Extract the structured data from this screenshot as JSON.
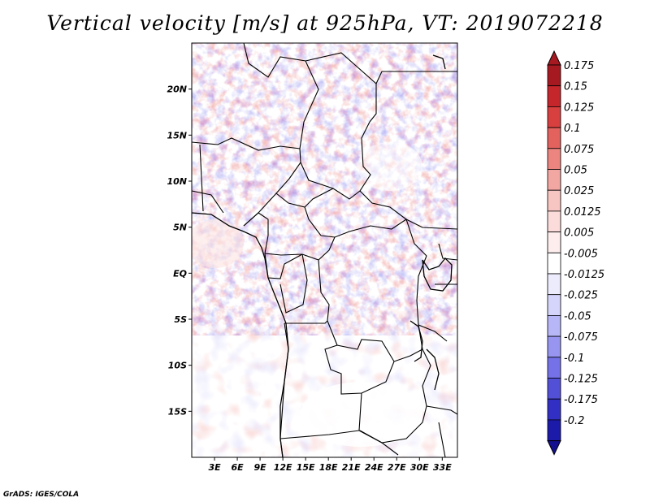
{
  "title": "Vertical velocity [m/s] at 925hPa, VT: 2019072218",
  "credit": "GrADS: IGES/COLA",
  "map": {
    "lat_range": [
      -20,
      25
    ],
    "lon_range": [
      0,
      35
    ],
    "lat_labels": [
      {
        "value": 20,
        "text": "20N"
      },
      {
        "value": 15,
        "text": "15N"
      },
      {
        "value": 10,
        "text": "10N"
      },
      {
        "value": 5,
        "text": "5N"
      },
      {
        "value": 0,
        "text": "EQ"
      },
      {
        "value": -5,
        "text": "5S"
      },
      {
        "value": -10,
        "text": "10S"
      },
      {
        "value": -15,
        "text": "15S"
      }
    ],
    "lon_labels": [
      {
        "value": 3,
        "text": "3E"
      },
      {
        "value": 6,
        "text": "6E"
      },
      {
        "value": 9,
        "text": "9E"
      },
      {
        "value": 12,
        "text": "12E"
      },
      {
        "value": 15,
        "text": "15E"
      },
      {
        "value": 18,
        "text": "18E"
      },
      {
        "value": 21,
        "text": "21E"
      },
      {
        "value": 24,
        "text": "24E"
      },
      {
        "value": 27,
        "text": "27E"
      },
      {
        "value": 30,
        "text": "30E"
      },
      {
        "value": 33,
        "text": "33E"
      }
    ]
  },
  "colorbar": {
    "levels": [
      {
        "label": "0.175",
        "color": "#a71920"
      },
      {
        "label": "0.15",
        "color": "#c4262b"
      },
      {
        "label": "0.125",
        "color": "#d8403f"
      },
      {
        "label": "0.1",
        "color": "#e3625e"
      },
      {
        "label": "0.075",
        "color": "#ec8580"
      },
      {
        "label": "0.05",
        "color": "#f3a7a2"
      },
      {
        "label": "0.025",
        "color": "#f8c6c2"
      },
      {
        "label": "0.0125",
        "color": "#fbdcda"
      },
      {
        "label": "0.005",
        "color": "#fdeeed"
      },
      {
        "label": "-0.005",
        "color": "#ffffff"
      },
      {
        "label": "-0.0125",
        "color": "#ececfd"
      },
      {
        "label": "-0.025",
        "color": "#d5d5fb"
      },
      {
        "label": "-0.05",
        "color": "#b7b6f7"
      },
      {
        "label": "-0.075",
        "color": "#9795f0"
      },
      {
        "label": "-0.1",
        "color": "#7472e6"
      },
      {
        "label": "-0.125",
        "color": "#5350d8"
      },
      {
        "label": "-0.175",
        "color": "#3230c4"
      },
      {
        "label": "-0.2",
        "color": "#1c1aa8"
      }
    ],
    "bottom_color": "#14108f",
    "top_color": "#a71920"
  }
}
